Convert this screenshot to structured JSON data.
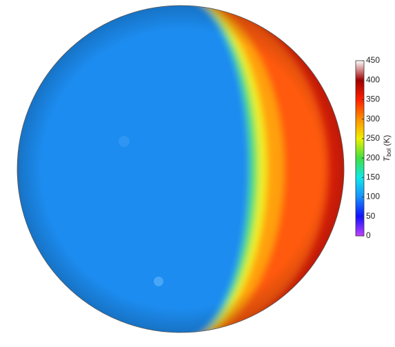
{
  "chart_data": {
    "type": "map",
    "colorbar": {
      "lim": [
        0,
        450
      ],
      "ticks": [
        0,
        50,
        100,
        150,
        200,
        250,
        300,
        350,
        400,
        450
      ],
      "label": "T",
      "label_sub": "bol",
      "label_unit": "(K)",
      "colormap": [
        "#c040ff",
        "#1010ff",
        "#1890ff",
        "#10e8e8",
        "#40e040",
        "#f0f000",
        "#ff9000",
        "#ff2000",
        "#a00000",
        "#ffffff"
      ]
    }
  }
}
